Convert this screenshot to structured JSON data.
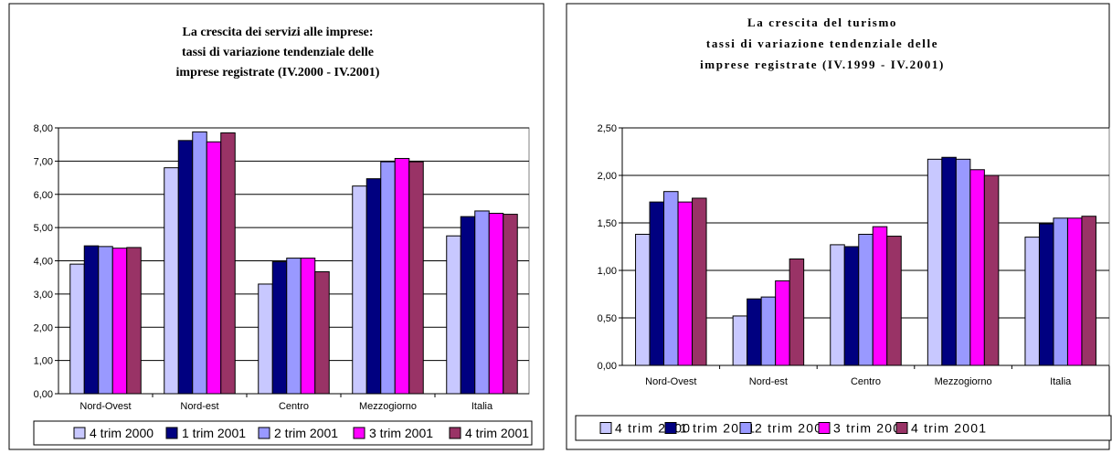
{
  "chart_data": [
    {
      "type": "bar",
      "title": [
        "La crescita dei servizi alle imprese:",
        "tassi di  variazione tendenziale delle",
        "imprese registrate (IV.2000 - IV.2001)"
      ],
      "categories": [
        "Nord-Ovest",
        "Nord-est",
        "Centro",
        "Mezzogiorno",
        "Italia"
      ],
      "ylim": [
        0,
        8
      ],
      "yticks": [
        "0,00",
        "1,00",
        "2,00",
        "3,00",
        "4,00",
        "5,00",
        "6,00",
        "7,00",
        "8,00"
      ],
      "grid": true,
      "legend_position": "bottom",
      "series": [
        {
          "name": "4 trim 2000",
          "color": "#c8c8ff",
          "values": [
            3.9,
            6.8,
            3.3,
            6.25,
            4.75
          ]
        },
        {
          "name": "1 trim 2001",
          "color": "#000080",
          "values": [
            4.45,
            7.62,
            3.97,
            6.47,
            5.33
          ]
        },
        {
          "name": "2 trim 2001",
          "color": "#9999ff",
          "values": [
            4.43,
            7.88,
            4.08,
            6.98,
            5.5
          ]
        },
        {
          "name": "3 trim 2001",
          "color": "#ff00ff",
          "values": [
            4.38,
            7.58,
            4.08,
            7.08,
            5.43
          ]
        },
        {
          "name": "4 trim 2001",
          "color": "#993366",
          "values": [
            4.4,
            7.85,
            3.67,
            6.98,
            5.4
          ]
        }
      ]
    },
    {
      "type": "bar",
      "title": [
        "La crescita del turismo",
        "tassi di variazione tendenziale delle",
        "imprese registrate (IV.1999 - IV.2001)"
      ],
      "categories": [
        "Nord-Ovest",
        "Nord-est",
        "Centro",
        "Mezzogiorno",
        "Italia"
      ],
      "ylim": [
        0,
        2.5
      ],
      "yticks": [
        "0,00",
        "0,50",
        "1,00",
        "1,50",
        "2,00",
        "2,50"
      ],
      "grid": true,
      "legend_position": "bottom",
      "series": [
        {
          "name": "4 trim 2000",
          "color": "#c8c8ff",
          "values": [
            1.38,
            0.52,
            1.27,
            2.17,
            1.35
          ]
        },
        {
          "name": "1 trim 2001",
          "color": "#000080",
          "values": [
            1.72,
            0.7,
            1.25,
            2.19,
            1.49
          ]
        },
        {
          "name": "2 trim 2001",
          "color": "#9999ff",
          "values": [
            1.83,
            0.72,
            1.38,
            2.17,
            1.55
          ]
        },
        {
          "name": "3 trim 2001",
          "color": "#ff00ff",
          "values": [
            1.72,
            0.89,
            1.46,
            2.06,
            1.55
          ]
        },
        {
          "name": "4 trim 2001",
          "color": "#993366",
          "values": [
            1.76,
            1.12,
            1.36,
            2.0,
            1.57
          ]
        }
      ]
    }
  ]
}
